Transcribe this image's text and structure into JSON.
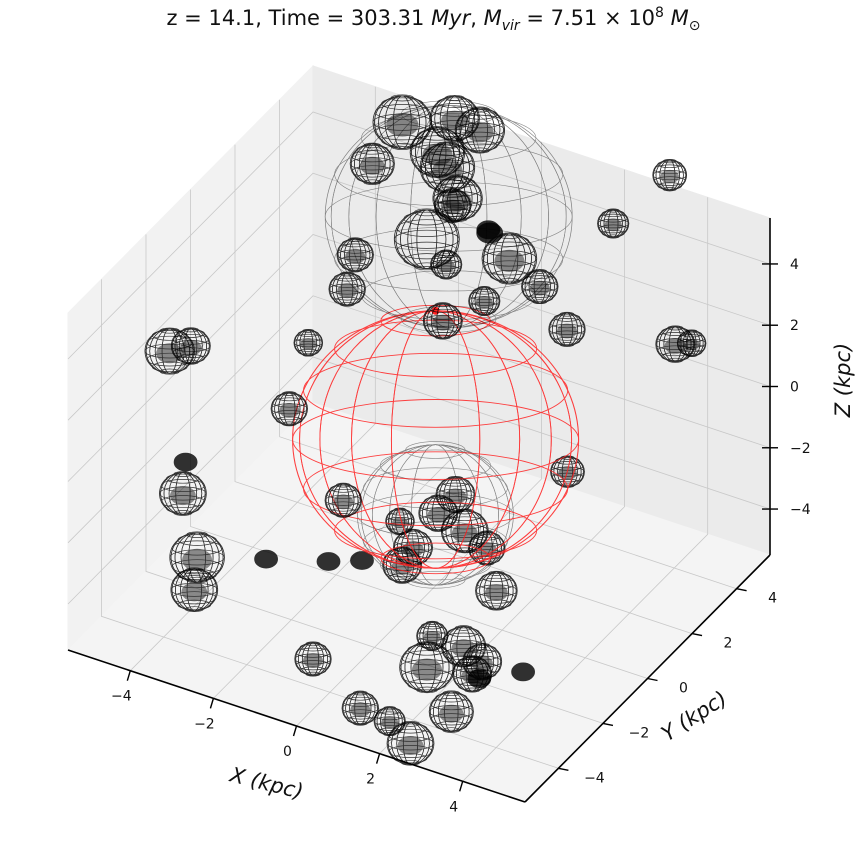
{
  "title": {
    "z_part": "z = 14.1,  Time = 303.31 ",
    "time_unit": "Myr",
    "mvir_sep": ",  ",
    "mvir_symbol": "M",
    "mvir_sub": "vir",
    "mvir_value": " = 7.51 × 10",
    "mvir_exp": "8",
    "msun_symbol": "M",
    "msun_sub": "⊙"
  },
  "chart_data": {
    "type": "scatter",
    "projection": "3d",
    "xlabel": "X (kpc)",
    "ylabel": "Y (kpc)",
    "zlabel": "Z (kpc)",
    "x_ticks": [
      "−4",
      "−2",
      "0",
      "2",
      "4"
    ],
    "y_ticks": [
      "−4",
      "−2",
      "0",
      "2",
      "4"
    ],
    "z_ticks": [
      "−4",
      "−2",
      "0",
      "2",
      "4"
    ],
    "xlim": [
      -5.5,
      5.5
    ],
    "ylim": [
      -5.5,
      5.5
    ],
    "zlim": [
      -5.5,
      5.5
    ],
    "grid": true,
    "colors": {
      "main_halo": "#ff2020",
      "subhalo": "#000000",
      "pane": "#f2f2f2",
      "grid": "#c8c8c8"
    },
    "main_halo": {
      "x": 0.4,
      "y": 0.0,
      "z": 0.0,
      "r": 2.2
    },
    "subhalos": [
      {
        "x": -1.0,
        "y": 3.2,
        "z": 4.3,
        "r": 1.9,
        "faint": true
      },
      {
        "x": 1.2,
        "y": -1.5,
        "z": -1.0,
        "r": 1.2,
        "faint": true
      },
      {
        "x": -2.6,
        "y": 4.1,
        "z": 6.0,
        "r": 0.45
      },
      {
        "x": -1.5,
        "y": 4.4,
        "z": 6.4,
        "r": 0.38
      },
      {
        "x": -1.0,
        "y": 4.6,
        "z": 6.1,
        "r": 0.38
      },
      {
        "x": -1.7,
        "y": 4.0,
        "z": 5.5,
        "r": 0.42
      },
      {
        "x": -1.3,
        "y": 3.7,
        "z": 5.4,
        "r": 0.42
      },
      {
        "x": -3.0,
        "y": 3.5,
        "z": 4.9,
        "r": 0.34
      },
      {
        "x": -1.0,
        "y": 3.6,
        "z": 4.6,
        "r": 0.38
      },
      {
        "x": -0.8,
        "y": 3.0,
        "z": 4.9,
        "r": 0.28
      },
      {
        "x": -1.1,
        "y": 2.4,
        "z": 4.1,
        "r": 0.5
      },
      {
        "x": 0.3,
        "y": 3.5,
        "z": 3.3,
        "r": 0.42
      },
      {
        "x": 0.2,
        "y": 2.8,
        "z": 4.6,
        "r": 0.18
      },
      {
        "x": -0.1,
        "y": 3.3,
        "z": 4.2,
        "r": 0.16
      },
      {
        "x": -2.5,
        "y": 1.8,
        "z": 3.4,
        "r": 0.28
      },
      {
        "x": 1.3,
        "y": 3.0,
        "z": 3.2,
        "r": 0.28
      },
      {
        "x": 2.1,
        "y": 4.8,
        "z": 4.3,
        "r": 0.24
      },
      {
        "x": -0.9,
        "y": 2.9,
        "z": 3.0,
        "r": 0.24
      },
      {
        "x": 0.5,
        "y": 2.0,
        "z": 3.1,
        "r": 0.24
      },
      {
        "x": 3.3,
        "y": 5.1,
        "z": 6.2,
        "r": 0.26
      },
      {
        "x": 1.9,
        "y": 3.1,
        "z": 2.0,
        "r": 0.28
      },
      {
        "x": -0.5,
        "y": 2.0,
        "z": 2.0,
        "r": 0.3
      },
      {
        "x": -6.0,
        "y": 0.0,
        "z": 0.0,
        "r": 0.38
      },
      {
        "x": -5.6,
        "y": 0.2,
        "z": 0.2,
        "r": 0.3
      },
      {
        "x": -3.2,
        "y": 1.0,
        "z": 0.8,
        "r": 0.22
      },
      {
        "x": -2.8,
        "y": 2.0,
        "z": 2.0,
        "r": 0.28
      },
      {
        "x": 4.4,
        "y": 3.3,
        "z": 2.5,
        "r": 0.3
      },
      {
        "x": 4.9,
        "y": 3.1,
        "z": 2.9,
        "r": 0.22
      },
      {
        "x": -2.8,
        "y": -0.6,
        "z": 0.0,
        "r": 0.28
      },
      {
        "x": 3.2,
        "y": 0.7,
        "z": -0.3,
        "r": 0.26
      },
      {
        "x": -3.7,
        "y": -3.7,
        "z": -0.9,
        "r": 0.36
      },
      {
        "x": -4.6,
        "y": -1.9,
        "z": -1.6,
        "r": 0.16
      },
      {
        "x": 3.9,
        "y": -2.6,
        "z": -4.1,
        "r": 0.16
      },
      {
        "x": -4.0,
        "y": -2.5,
        "z": -4.0,
        "r": 0.42
      },
      {
        "x": -3.8,
        "y": -3.0,
        "z": -4.6,
        "r": 0.36
      },
      {
        "x": -1.5,
        "y": -0.6,
        "z": -2.4,
        "r": 0.28
      },
      {
        "x": 0.5,
        "y": -1.2,
        "z": -2.6,
        "r": 0.3
      },
      {
        "x": 0.4,
        "y": -1.5,
        "z": -3.0,
        "r": 0.3
      },
      {
        "x": 1.9,
        "y": -0.5,
        "z": -2.5,
        "r": 0.28
      },
      {
        "x": 2.4,
        "y": -1.0,
        "z": -3.3,
        "r": 0.32
      },
      {
        "x": 2.2,
        "y": -2.1,
        "z": -4.4,
        "r": 0.34
      },
      {
        "x": 2.7,
        "y": -2.2,
        "z": -4.6,
        "r": 0.3
      },
      {
        "x": 2.3,
        "y": -1.9,
        "z": -5.4,
        "r": 0.3
      },
      {
        "x": -0.3,
        "y": -4.2,
        "z": -4.4,
        "r": 0.28
      },
      {
        "x": 1.0,
        "y": -4.5,
        "z": -5.2,
        "r": 0.28
      },
      {
        "x": -1.0,
        "y": -2.2,
        "z": -3.0,
        "r": 0.16
      },
      {
        "x": -2.5,
        "y": -2.2,
        "z": -3.6,
        "r": 0.16
      },
      {
        "x": 0.4,
        "y": -1.6,
        "z": -1.5,
        "r": 0.22
      },
      {
        "x": 1.0,
        "y": -1.0,
        "z": -1.4,
        "r": 0.3
      },
      {
        "x": 1.2,
        "y": -0.6,
        "z": -1.0,
        "r": 0.3
      },
      {
        "x": 1.8,
        "y": -1.3,
        "z": -1.4,
        "r": 0.36
      },
      {
        "x": -0.3,
        "y": -2.0,
        "z": -2.8,
        "r": 0.16
      },
      {
        "x": 1.5,
        "y": -2.2,
        "z": -4.3,
        "r": 0.24
      },
      {
        "x": 1.8,
        "y": -3.0,
        "z": -4.6,
        "r": 0.42
      },
      {
        "x": 2.6,
        "y": -3.4,
        "z": -5.4,
        "r": 0.34
      },
      {
        "x": 2.9,
        "y": -2.7,
        "z": -4.7,
        "r": 0.16
      },
      {
        "x": 2.1,
        "y": -4.3,
        "z": -6.0,
        "r": 0.36
      },
      {
        "x": 1.6,
        "y": -4.3,
        "z": -5.5,
        "r": 0.24
      }
    ]
  }
}
